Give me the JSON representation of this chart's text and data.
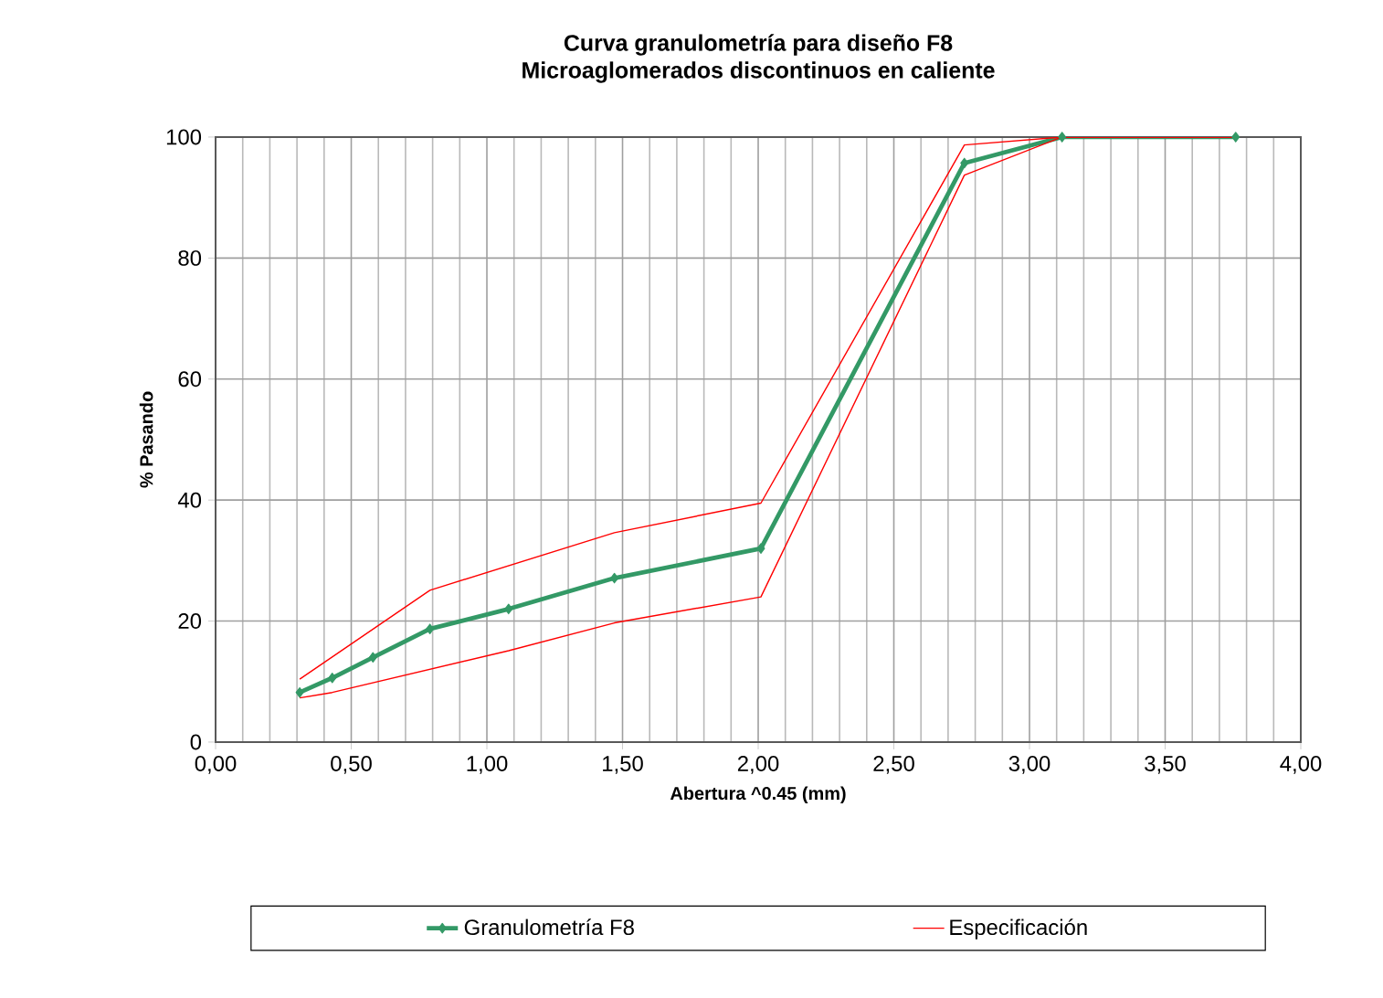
{
  "chart_data": {
    "type": "line",
    "title": "Curva granulometría para diseño F8",
    "subtitle": "Microaglomerados discontinuos en caliente",
    "xlabel": "Abertura ^0.45 (mm)",
    "ylabel": "% Pasando",
    "xlim": [
      0,
      4
    ],
    "ylim": [
      0,
      100
    ],
    "xticks": [
      {
        "value": 0,
        "label": "0,00"
      },
      {
        "value": 0.5,
        "label": "0,50"
      },
      {
        "value": 1,
        "label": "1,00"
      },
      {
        "value": 1.5,
        "label": "1,50"
      },
      {
        "value": 2,
        "label": "2,00"
      },
      {
        "value": 2.5,
        "label": "2,50"
      },
      {
        "value": 3,
        "label": "3,00"
      },
      {
        "value": 3.5,
        "label": "3,50"
      },
      {
        "value": 4,
        "label": "4,00"
      }
    ],
    "yticks": [
      0,
      20,
      40,
      60,
      80,
      100
    ],
    "grid": true,
    "legend": "bottom",
    "series": [
      {
        "name": "Granulometría F8",
        "color": "#339966",
        "marker": "diamond",
        "x": [
          0.31,
          0.43,
          0.58,
          0.79,
          1.08,
          1.47,
          2.01,
          2.76,
          3.12,
          3.76
        ],
        "values": [
          8.2,
          10.6,
          14.0,
          18.7,
          22.0,
          27.1,
          32.0,
          95.7,
          100,
          100
        ]
      },
      {
        "name": "Especificación",
        "color": "#ff0000",
        "marker": "none",
        "x": [
          0.31,
          0.79,
          1.47,
          2.01,
          2.76,
          3.12,
          3.76
        ],
        "values": [
          10.4,
          25.1,
          34.6,
          39.5,
          98.7,
          100,
          100
        ]
      },
      {
        "color": "#ff0000",
        "marker": "none",
        "x": [
          0.31,
          0.43,
          1.08,
          1.47,
          2.01,
          2.76,
          3.12,
          3.76
        ],
        "values": [
          7.3,
          8.2,
          15.1,
          19.7,
          24.0,
          93.7,
          100,
          100
        ]
      }
    ]
  }
}
